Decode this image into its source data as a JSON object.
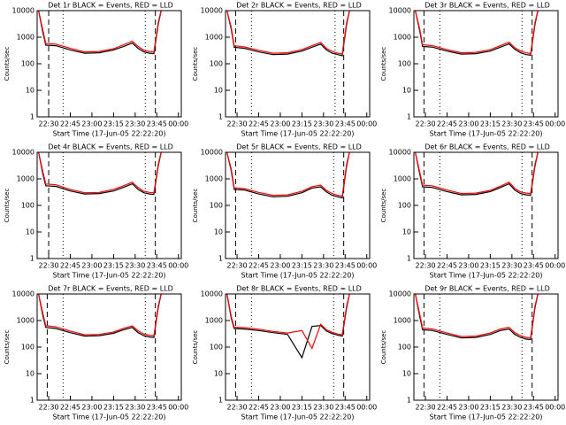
{
  "chart_data": [
    {
      "type": "line",
      "title": "Det 1r BLACK = Events, RED = LLD",
      "ylabel": "Counts/sec",
      "xlabel": "Start Time (17-Jun-05 22:22:20)",
      "log_y": true,
      "x": [
        "22:23",
        "22:26",
        "22:28",
        "22:35",
        "22:45",
        "22:55",
        "23:05",
        "23:15",
        "23:22",
        "23:28",
        "23:32",
        "23:36",
        "23:40",
        "23:43",
        "23:46",
        "23:48"
      ],
      "series": [
        {
          "name": "Events",
          "color": "#000000",
          "values": [
            10000,
            1500,
            500,
            480,
            330,
            250,
            260,
            330,
            450,
            600,
            380,
            280,
            250,
            240,
            3000,
            10000
          ]
        },
        {
          "name": "LLD",
          "color": "#ff0000",
          "values": [
            10000,
            1800,
            580,
            550,
            380,
            280,
            290,
            370,
            520,
            700,
            450,
            320,
            290,
            280,
            3500,
            10000
          ]
        }
      ],
      "vlines": [
        {
          "x": "22:30",
          "style": "dashed"
        },
        {
          "x": "22:40",
          "style": "dotted"
        },
        {
          "x": "23:37",
          "style": "dotted"
        },
        {
          "x": "23:44",
          "style": "dashed"
        }
      ],
      "xlim": [
        "22:22",
        "00:02"
      ],
      "xticks": [
        "22:30",
        "22:45",
        "23:00",
        "23:15",
        "23:30",
        "23:45",
        "00:00"
      ],
      "ylim": [
        1,
        10000
      ],
      "yticks": [
        1,
        10,
        100,
        1000,
        10000
      ]
    },
    {
      "type": "line",
      "title": "Det 2r BLACK = Events, RED = LLD",
      "ylabel": "Counts/sec",
      "xlabel": "Start Time (17-Jun-05 22:22:20)",
      "log_y": true,
      "x": [
        "22:23",
        "22:26",
        "22:28",
        "22:35",
        "22:45",
        "22:55",
        "23:05",
        "23:15",
        "23:22",
        "23:28",
        "23:32",
        "23:36",
        "23:40",
        "23:43",
        "23:46",
        "23:48"
      ],
      "series": [
        {
          "name": "Events",
          "color": "#000000",
          "values": [
            10000,
            2000,
            420,
            380,
            280,
            220,
            230,
            300,
            420,
            550,
            330,
            250,
            220,
            200,
            3000,
            10000
          ]
        },
        {
          "name": "LLD",
          "color": "#ff0000",
          "values": [
            10000,
            2300,
            480,
            430,
            320,
            250,
            260,
            340,
            480,
            630,
            380,
            290,
            250,
            230,
            3500,
            10000
          ]
        }
      ],
      "vlines": [
        {
          "x": "22:29",
          "style": "dashed"
        },
        {
          "x": "22:40",
          "style": "dotted"
        },
        {
          "x": "23:38",
          "style": "dotted"
        },
        {
          "x": "23:44",
          "style": "dashed"
        }
      ],
      "xlim": [
        "22:22",
        "00:02"
      ],
      "xticks": [
        "22:30",
        "22:45",
        "23:00",
        "23:15",
        "23:30",
        "23:45",
        "00:00"
      ],
      "ylim": [
        1,
        10000
      ],
      "yticks": [
        1,
        10,
        100,
        1000,
        10000
      ]
    },
    {
      "type": "line",
      "title": "Det 3r BLACK = Events, RED = LLD",
      "ylabel": "Counts/sec",
      "xlabel": "Start Time (17-Jun-05 22:22:20)",
      "log_y": true,
      "x": [
        "22:23",
        "22:26",
        "22:28",
        "22:35",
        "22:45",
        "22:55",
        "23:05",
        "23:15",
        "23:22",
        "23:28",
        "23:32",
        "23:36",
        "23:40",
        "23:43",
        "23:46",
        "23:48"
      ],
      "series": [
        {
          "name": "Events",
          "color": "#000000",
          "values": [
            10000,
            1800,
            450,
            420,
            300,
            230,
            240,
            300,
            420,
            560,
            350,
            260,
            220,
            210,
            3000,
            10000
          ]
        },
        {
          "name": "LLD",
          "color": "#ff0000",
          "values": [
            10000,
            2100,
            520,
            480,
            340,
            260,
            270,
            340,
            480,
            650,
            400,
            300,
            260,
            240,
            3500,
            10000
          ]
        }
      ],
      "vlines": [
        {
          "x": "22:29",
          "style": "dashed"
        },
        {
          "x": "22:40",
          "style": "dotted"
        },
        {
          "x": "23:37",
          "style": "dotted"
        },
        {
          "x": "23:44",
          "style": "dashed"
        }
      ],
      "xlim": [
        "22:22",
        "00:02"
      ],
      "xticks": [
        "22:30",
        "22:45",
        "23:00",
        "23:15",
        "23:30",
        "23:45",
        "00:00"
      ],
      "ylim": [
        1,
        10000
      ],
      "yticks": [
        1,
        10,
        100,
        1000,
        10000
      ]
    },
    {
      "type": "line",
      "title": "Det 4r BLACK = Events, RED = LLD",
      "ylabel": "Counts/sec",
      "xlabel": "Start Time (17-Jun-05 22:22:20)",
      "log_y": true,
      "x": [
        "22:23",
        "22:26",
        "22:28",
        "22:35",
        "22:45",
        "22:55",
        "23:05",
        "23:15",
        "23:22",
        "23:28",
        "23:32",
        "23:36",
        "23:40",
        "23:43",
        "23:46",
        "23:48"
      ],
      "series": [
        {
          "name": "Events",
          "color": "#000000",
          "values": [
            10000,
            1500,
            550,
            520,
            350,
            270,
            280,
            350,
            480,
            650,
            400,
            300,
            270,
            260,
            3000,
            10000
          ]
        },
        {
          "name": "LLD",
          "color": "#ff0000",
          "values": [
            10000,
            1800,
            640,
            600,
            400,
            300,
            310,
            400,
            550,
            750,
            470,
            340,
            310,
            300,
            3500,
            10000
          ]
        }
      ],
      "vlines": [
        {
          "x": "22:30",
          "style": "dashed"
        },
        {
          "x": "22:40",
          "style": "dotted"
        },
        {
          "x": "23:37",
          "style": "dotted"
        },
        {
          "x": "23:44",
          "style": "dashed"
        }
      ],
      "xlim": [
        "22:22",
        "00:02"
      ],
      "xticks": [
        "22:30",
        "22:45",
        "23:00",
        "23:15",
        "23:30",
        "23:45",
        "00:00"
      ],
      "ylim": [
        1,
        10000
      ],
      "yticks": [
        1,
        10,
        100,
        1000,
        10000
      ]
    },
    {
      "type": "line",
      "title": "Det 5r BLACK = Events, RED = LLD",
      "ylabel": "Counts/sec",
      "xlabel": "Start Time (17-Jun-05 22:22:20)",
      "log_y": true,
      "x": [
        "22:23",
        "22:26",
        "22:28",
        "22:35",
        "22:45",
        "22:55",
        "23:05",
        "23:15",
        "23:22",
        "23:28",
        "23:32",
        "23:36",
        "23:40",
        "23:43",
        "23:46",
        "23:48"
      ],
      "series": [
        {
          "name": "Events",
          "color": "#000000",
          "values": [
            10000,
            2000,
            400,
            380,
            270,
            210,
            220,
            300,
            450,
            500,
            320,
            240,
            210,
            190,
            3000,
            10000
          ]
        },
        {
          "name": "LLD",
          "color": "#ff0000",
          "values": [
            10000,
            2300,
            460,
            430,
            310,
            240,
            250,
            340,
            510,
            580,
            370,
            280,
            240,
            220,
            3500,
            10000
          ]
        }
      ],
      "vlines": [
        {
          "x": "22:29",
          "style": "dashed"
        },
        {
          "x": "22:40",
          "style": "dotted"
        },
        {
          "x": "23:37",
          "style": "dotted"
        },
        {
          "x": "23:44",
          "style": "dashed"
        }
      ],
      "xlim": [
        "22:22",
        "00:02"
      ],
      "xticks": [
        "22:30",
        "22:45",
        "23:00",
        "23:15",
        "23:30",
        "23:45",
        "00:00"
      ],
      "ylim": [
        1,
        10000
      ],
      "yticks": [
        1,
        10,
        100,
        1000,
        10000
      ]
    },
    {
      "type": "line",
      "title": "Det 6r BLACK = Events, RED = LLD",
      "ylabel": "Counts/sec",
      "xlabel": "Start Time (17-Jun-05 22:22:20)",
      "log_y": true,
      "x": [
        "22:23",
        "22:26",
        "22:28",
        "22:35",
        "22:45",
        "22:55",
        "23:05",
        "23:15",
        "23:22",
        "23:28",
        "23:32",
        "23:36",
        "23:40",
        "23:43",
        "23:46",
        "23:48"
      ],
      "series": [
        {
          "name": "Events",
          "color": "#000000",
          "values": [
            10000,
            1600,
            500,
            470,
            330,
            250,
            260,
            330,
            470,
            650,
            380,
            280,
            250,
            240,
            3000,
            10000
          ]
        },
        {
          "name": "LLD",
          "color": "#ff0000",
          "values": [
            10000,
            1900,
            580,
            540,
            380,
            280,
            290,
            370,
            530,
            750,
            440,
            320,
            290,
            280,
            3500,
            10000
          ]
        }
      ],
      "vlines": [
        {
          "x": "22:29",
          "style": "dashed"
        },
        {
          "x": "22:40",
          "style": "dotted"
        },
        {
          "x": "23:37",
          "style": "dotted"
        },
        {
          "x": "23:44",
          "style": "dashed"
        }
      ],
      "xlim": [
        "22:22",
        "00:02"
      ],
      "xticks": [
        "22:30",
        "22:45",
        "23:00",
        "23:15",
        "23:30",
        "23:45",
        "00:00"
      ],
      "ylim": [
        1,
        10000
      ],
      "yticks": [
        1,
        10,
        100,
        1000,
        10000
      ]
    },
    {
      "type": "line",
      "title": "Det 7r BLACK = Events, RED = LLD",
      "ylabel": "Counts/sec",
      "xlabel": "Start Time (17-Jun-05 22:22:20)",
      "log_y": true,
      "x": [
        "22:23",
        "22:26",
        "22:28",
        "22:35",
        "22:45",
        "22:55",
        "23:05",
        "23:15",
        "23:22",
        "23:28",
        "23:32",
        "23:36",
        "23:40",
        "23:43",
        "23:46",
        "23:48"
      ],
      "series": [
        {
          "name": "Events",
          "color": "#000000",
          "values": [
            10000,
            1500,
            550,
            500,
            350,
            260,
            270,
            330,
            450,
            550,
            350,
            270,
            240,
            230,
            3000,
            10000
          ]
        },
        {
          "name": "LLD",
          "color": "#ff0000",
          "values": [
            10000,
            1800,
            640,
            580,
            400,
            290,
            300,
            370,
            510,
            630,
            410,
            310,
            280,
            270,
            3500,
            10000
          ]
        }
      ],
      "vlines": [
        {
          "x": "22:29",
          "style": "dashed"
        },
        {
          "x": "22:40",
          "style": "dotted"
        },
        {
          "x": "23:37",
          "style": "dotted"
        },
        {
          "x": "23:44",
          "style": "dashed"
        }
      ],
      "xlim": [
        "22:22",
        "00:02"
      ],
      "xticks": [
        "22:30",
        "22:45",
        "23:00",
        "23:15",
        "23:30",
        "23:45",
        "00:00"
      ],
      "ylim": [
        1,
        10000
      ],
      "yticks": [
        1,
        10,
        100,
        1000,
        10000
      ]
    },
    {
      "type": "line",
      "title": "Det 8r BLACK = Events, RED = LLD",
      "ylabel": "Counts/sec",
      "xlabel": "Start Time (17-Jun-05 22:22:20)",
      "log_y": true,
      "x": [
        "22:23",
        "22:26",
        "22:28",
        "22:35",
        "22:45",
        "22:55",
        "23:05",
        "23:15",
        "23:22",
        "23:28",
        "23:32",
        "23:36",
        "23:40",
        "23:43",
        "23:46",
        "23:48"
      ],
      "series": [
        {
          "name": "Events",
          "color": "#000000",
          "values": [
            10000,
            1200,
            500,
            480,
            420,
            350,
            300,
            40,
            600,
            650,
            400,
            320,
            280,
            260,
            3000,
            10000
          ]
        },
        {
          "name": "LLD",
          "color": "#ff0000",
          "values": [
            10000,
            1400,
            560,
            540,
            470,
            390,
            340,
            420,
            90,
            720,
            450,
            360,
            310,
            290,
            3500,
            10000
          ]
        }
      ],
      "vlines": [
        {
          "x": "22:29",
          "style": "dashed"
        },
        {
          "x": "22:40",
          "style": "dotted"
        },
        {
          "x": "23:37",
          "style": "dotted"
        },
        {
          "x": "23:44",
          "style": "dashed"
        }
      ],
      "xlim": [
        "22:22",
        "00:02"
      ],
      "xticks": [
        "22:30",
        "22:45",
        "23:00",
        "23:15",
        "23:30",
        "23:45",
        "00:00"
      ],
      "ylim": [
        1,
        10000
      ],
      "yticks": [
        1,
        10,
        100,
        1000,
        10000
      ]
    },
    {
      "type": "line",
      "title": "Det 9r BLACK = Events, RED = LLD",
      "ylabel": "Counts/sec",
      "xlabel": "Start Time (17-Jun-05 22:22:20)",
      "log_y": true,
      "x": [
        "22:23",
        "22:26",
        "22:28",
        "22:35",
        "22:45",
        "22:55",
        "23:05",
        "23:15",
        "23:22",
        "23:28",
        "23:32",
        "23:36",
        "23:40",
        "23:43",
        "23:46",
        "23:48"
      ],
      "series": [
        {
          "name": "Events",
          "color": "#000000",
          "values": [
            10000,
            1500,
            450,
            420,
            300,
            220,
            230,
            300,
            420,
            480,
            300,
            230,
            200,
            190,
            3000,
            10000
          ]
        },
        {
          "name": "LLD",
          "color": "#ff0000",
          "values": [
            10000,
            1800,
            520,
            480,
            340,
            250,
            260,
            340,
            480,
            560,
            350,
            270,
            230,
            220,
            3500,
            10000
          ]
        }
      ],
      "vlines": [
        {
          "x": "22:29",
          "style": "dashed"
        },
        {
          "x": "22:40",
          "style": "dotted"
        },
        {
          "x": "23:37",
          "style": "dotted"
        },
        {
          "x": "23:44",
          "style": "dashed"
        }
      ],
      "xlim": [
        "22:22",
        "00:02"
      ],
      "xticks": [
        "22:30",
        "22:45",
        "23:00",
        "23:15",
        "23:30",
        "23:45",
        "00:00"
      ],
      "ylim": [
        1,
        10000
      ],
      "yticks": [
        1,
        10,
        100,
        1000,
        10000
      ]
    }
  ]
}
